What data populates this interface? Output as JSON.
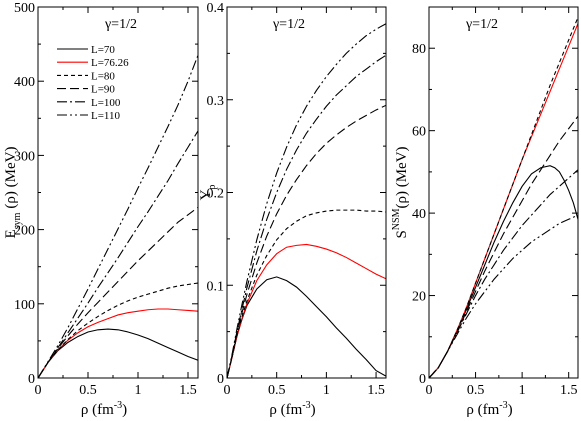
{
  "figure": {
    "gamma_label": "γ=1/2",
    "xlabel": "ρ (fm",
    "xlabel_sup": "-3",
    "xlabel_tail": ")"
  },
  "colors": {
    "black": "#000000",
    "red": "#ff0000"
  },
  "legend": {
    "entries": [
      {
        "label": "L=70",
        "color": "#000000",
        "dash": "solid"
      },
      {
        "label": "L=76.26",
        "color": "#ff0000",
        "dash": "solid"
      },
      {
        "label": "L=80",
        "color": "#000000",
        "dash": "short-dash"
      },
      {
        "label": "L=90",
        "color": "#000000",
        "dash": "long-dash"
      },
      {
        "label": "L=100",
        "color": "#000000",
        "dash": "dash-dot"
      },
      {
        "label": "L=110",
        "color": "#000000",
        "dash": "dash-dot-dot"
      }
    ]
  },
  "chart_data": [
    {
      "type": "line",
      "panel": "esym",
      "title": "γ=1/2",
      "xlabel": "ρ (fm-3)",
      "ylabel": "Esym (ρ) (MeV)",
      "ylabel_main": "E",
      "ylabel_sub": "sym",
      "ylabel_tail": "(ρ) (MeV)",
      "xlim": [
        0,
        1.6
      ],
      "ylim": [
        0,
        500
      ],
      "xticks": [
        0,
        0.5,
        1,
        1.5
      ],
      "xtick_labels": [
        "0",
        "0.5",
        "1",
        "1.5"
      ],
      "yticks": [
        0,
        100,
        200,
        300,
        400,
        500
      ],
      "ytick_labels": [
        "0",
        "100",
        "200",
        "300",
        "400",
        "500"
      ],
      "series": [
        {
          "name": "L=70",
          "x": [
            0,
            0.1,
            0.2,
            0.3,
            0.4,
            0.5,
            0.6,
            0.7,
            0.8,
            0.9,
            1.0,
            1.1,
            1.2,
            1.3,
            1.4,
            1.5,
            1.6
          ],
          "y": [
            0,
            21,
            37,
            48,
            56,
            62,
            65,
            66,
            65,
            62,
            58,
            53,
            47,
            41,
            35,
            29,
            24
          ]
        },
        {
          "name": "L=76.26",
          "x": [
            0,
            0.1,
            0.2,
            0.3,
            0.4,
            0.5,
            0.6,
            0.7,
            0.8,
            0.9,
            1.0,
            1.1,
            1.2,
            1.3,
            1.4,
            1.5,
            1.6
          ],
          "y": [
            0,
            21,
            38,
            51,
            61,
            69,
            75,
            80,
            85,
            88,
            90,
            92,
            93,
            93,
            92,
            91,
            90
          ]
        },
        {
          "name": "L=80",
          "x": [
            0,
            0.1,
            0.2,
            0.3,
            0.4,
            0.5,
            0.6,
            0.7,
            0.8,
            0.9,
            1.0,
            1.1,
            1.2,
            1.3,
            1.4,
            1.5,
            1.6
          ],
          "y": [
            0,
            21,
            38,
            52,
            64,
            74,
            83,
            91,
            98,
            104,
            109,
            113,
            117,
            121,
            124,
            126,
            128
          ]
        },
        {
          "name": "L=90",
          "x": [
            0,
            0.1,
            0.2,
            0.3,
            0.4,
            0.5,
            0.6,
            0.7,
            0.8,
            0.9,
            1.0,
            1.1,
            1.2,
            1.3,
            1.4,
            1.5,
            1.6
          ],
          "y": [
            0,
            21,
            40,
            57,
            73,
            88,
            102,
            116,
            130,
            144,
            158,
            171,
            184,
            197,
            210,
            220,
            230
          ]
        },
        {
          "name": "L=100",
          "x": [
            0,
            0.1,
            0.2,
            0.3,
            0.4,
            0.5,
            0.6,
            0.7,
            0.8,
            0.9,
            1.0,
            1.1,
            1.2,
            1.3,
            1.4,
            1.5,
            1.6
          ],
          "y": [
            0,
            21,
            41,
            61,
            81,
            101,
            122,
            142,
            162,
            183,
            204,
            224,
            245,
            266,
            289,
            311,
            333
          ]
        },
        {
          "name": "L=110",
          "x": [
            0,
            0.1,
            0.2,
            0.3,
            0.4,
            0.5,
            0.6,
            0.7,
            0.8,
            0.9,
            1.0,
            1.1,
            1.2,
            1.3,
            1.4,
            1.5,
            1.6
          ],
          "y": [
            0,
            22,
            44,
            68,
            94,
            120,
            147,
            174,
            201,
            228,
            256,
            283,
            311,
            339,
            368,
            400,
            435
          ]
        }
      ]
    },
    {
      "type": "line",
      "panel": "yp",
      "title": "γ=1/2",
      "xlabel": "ρ (fm-3)",
      "ylabel": "Yp",
      "ylabel_main": "Y",
      "ylabel_sub": "p",
      "ylabel_tail": "",
      "xlim": [
        0,
        1.6
      ],
      "ylim": [
        0,
        0.4
      ],
      "xticks": [
        0,
        0.5,
        1,
        1.5
      ],
      "xtick_labels": [
        "0",
        "0.5",
        "1",
        "1.5"
      ],
      "yticks": [
        0,
        0.1,
        0.2,
        0.3,
        0.4
      ],
      "ytick_labels": [
        "0",
        "0.1",
        "0.2",
        "0.3",
        "0.4"
      ],
      "series": [
        {
          "name": "L=70",
          "x": [
            0,
            0.05,
            0.1,
            0.15,
            0.2,
            0.3,
            0.4,
            0.5,
            0.6,
            0.7,
            0.8,
            0.9,
            1.0,
            1.1,
            1.2,
            1.3,
            1.4,
            1.5,
            1.6
          ],
          "y": [
            0,
            0.022,
            0.045,
            0.063,
            0.078,
            0.096,
            0.106,
            0.109,
            0.105,
            0.098,
            0.088,
            0.077,
            0.066,
            0.054,
            0.043,
            0.031,
            0.02,
            0.008,
            0.002
          ]
        },
        {
          "name": "L=76.26",
          "x": [
            0,
            0.05,
            0.1,
            0.15,
            0.2,
            0.3,
            0.4,
            0.5,
            0.6,
            0.7,
            0.8,
            0.9,
            1.0,
            1.1,
            1.2,
            1.3,
            1.4,
            1.5,
            1.6
          ],
          "y": [
            0,
            0.022,
            0.045,
            0.064,
            0.08,
            0.105,
            0.122,
            0.134,
            0.141,
            0.143,
            0.144,
            0.142,
            0.139,
            0.135,
            0.13,
            0.124,
            0.118,
            0.112,
            0.107
          ]
        },
        {
          "name": "L=80",
          "x": [
            0,
            0.05,
            0.1,
            0.15,
            0.2,
            0.3,
            0.4,
            0.5,
            0.6,
            0.7,
            0.8,
            0.9,
            1.0,
            1.1,
            1.2,
            1.3,
            1.4,
            1.5,
            1.6
          ],
          "y": [
            0,
            0.022,
            0.046,
            0.066,
            0.083,
            0.111,
            0.132,
            0.149,
            0.161,
            0.169,
            0.175,
            0.178,
            0.18,
            0.181,
            0.181,
            0.181,
            0.18,
            0.18,
            0.179
          ]
        },
        {
          "name": "L=90",
          "x": [
            0,
            0.05,
            0.1,
            0.15,
            0.2,
            0.3,
            0.4,
            0.5,
            0.6,
            0.7,
            0.8,
            0.9,
            1.0,
            1.1,
            1.2,
            1.3,
            1.4,
            1.5,
            1.6
          ],
          "y": [
            0,
            0.023,
            0.048,
            0.07,
            0.09,
            0.124,
            0.153,
            0.177,
            0.197,
            0.214,
            0.229,
            0.242,
            0.253,
            0.262,
            0.27,
            0.277,
            0.283,
            0.289,
            0.294
          ]
        },
        {
          "name": "L=100",
          "x": [
            0,
            0.05,
            0.1,
            0.15,
            0.2,
            0.3,
            0.4,
            0.5,
            0.6,
            0.7,
            0.8,
            0.9,
            1.0,
            1.1,
            1.2,
            1.3,
            1.4,
            1.5,
            1.6
          ],
          "y": [
            0,
            0.024,
            0.05,
            0.074,
            0.097,
            0.137,
            0.171,
            0.2,
            0.225,
            0.246,
            0.264,
            0.279,
            0.293,
            0.305,
            0.315,
            0.325,
            0.333,
            0.341,
            0.348
          ]
        },
        {
          "name": "L=110",
          "x": [
            0,
            0.05,
            0.1,
            0.15,
            0.2,
            0.3,
            0.4,
            0.5,
            0.6,
            0.7,
            0.8,
            0.9,
            1.0,
            1.1,
            1.2,
            1.3,
            1.4,
            1.5,
            1.6
          ],
          "y": [
            0,
            0.025,
            0.053,
            0.079,
            0.104,
            0.149,
            0.188,
            0.221,
            0.249,
            0.273,
            0.293,
            0.31,
            0.325,
            0.338,
            0.35,
            0.36,
            0.369,
            0.376,
            0.382
          ]
        }
      ]
    },
    {
      "type": "line",
      "panel": "snsm",
      "title": "γ=1/2",
      "xlabel": "ρ (fm-3)",
      "ylabel": "S^NSM(ρ) (MeV)",
      "ylabel_main": "S",
      "ylabel_sup": "NSM",
      "ylabel_tail": "(ρ) (MeV)",
      "xlim": [
        0,
        1.6
      ],
      "ylim": [
        0,
        90
      ],
      "xticks": [
        0,
        0.5,
        1,
        1.5
      ],
      "xtick_labels": [
        "0",
        "0.5",
        "1",
        "1.5"
      ],
      "yticks": [
        0,
        20,
        40,
        60,
        80
      ],
      "ytick_labels": [
        "0",
        "20",
        "40",
        "60",
        "80"
      ],
      "series": [
        {
          "name": "L=70",
          "x": [
            0,
            0.1,
            0.2,
            0.3,
            0.4,
            0.5,
            0.6,
            0.7,
            0.8,
            0.9,
            1.0,
            1.1,
            1.2,
            1.3,
            1.35,
            1.4,
            1.45,
            1.5,
            1.55,
            1.6
          ],
          "y": [
            0,
            2.5,
            6.5,
            11.5,
            16.5,
            22,
            27.5,
            33,
            38,
            42.5,
            46.5,
            49.5,
            51,
            51.5,
            51,
            50,
            48,
            45.5,
            42.5,
            38.5
          ]
        },
        {
          "name": "L=76.26",
          "x": [
            0,
            0.1,
            0.2,
            0.3,
            0.4,
            0.5,
            0.6,
            0.7,
            0.8,
            0.9,
            1.0,
            1.1,
            1.2,
            1.3,
            1.4,
            1.5,
            1.6
          ],
          "y": [
            0,
            2.5,
            6.5,
            11.5,
            17,
            23,
            29,
            35,
            41,
            47,
            53,
            58.5,
            64,
            69.5,
            75,
            80.5,
            86
          ]
        },
        {
          "name": "L=80",
          "x": [
            0,
            0.1,
            0.2,
            0.3,
            0.4,
            0.5,
            0.6,
            0.7,
            0.8,
            0.9,
            1.0,
            1.1,
            1.2,
            1.3,
            1.4,
            1.5,
            1.6
          ],
          "y": [
            0,
            2.5,
            6.5,
            11.5,
            17,
            23,
            29,
            35,
            41,
            47,
            53,
            59,
            65,
            71,
            76.5,
            82,
            87.5
          ]
        },
        {
          "name": "L=90",
          "x": [
            0,
            0.1,
            0.2,
            0.3,
            0.4,
            0.5,
            0.6,
            0.7,
            0.8,
            0.9,
            1.0,
            1.1,
            1.2,
            1.3,
            1.4,
            1.5,
            1.6
          ],
          "y": [
            0,
            2.5,
            6.5,
            11,
            16,
            21,
            26,
            30.5,
            35,
            39,
            43,
            47,
            50.5,
            54,
            57.5,
            60.5,
            63.5
          ]
        },
        {
          "name": "L=100",
          "x": [
            0,
            0.1,
            0.2,
            0.3,
            0.4,
            0.5,
            0.6,
            0.7,
            0.8,
            0.9,
            1.0,
            1.1,
            1.2,
            1.3,
            1.4,
            1.5,
            1.6
          ],
          "y": [
            0,
            2.5,
            6.5,
            11,
            15.5,
            20,
            24,
            27.5,
            31,
            34,
            37,
            39.5,
            42,
            44.5,
            46.5,
            48.5,
            50.5
          ]
        },
        {
          "name": "L=110",
          "x": [
            0,
            0.1,
            0.2,
            0.3,
            0.4,
            0.5,
            0.6,
            0.7,
            0.8,
            0.9,
            1.0,
            1.1,
            1.2,
            1.3,
            1.4,
            1.5,
            1.6
          ],
          "y": [
            0,
            2.5,
            6.5,
            10.5,
            14.5,
            18,
            21,
            24,
            26.5,
            29,
            31,
            33,
            34.5,
            36,
            37.5,
            38.5,
            39.5
          ]
        }
      ]
    }
  ]
}
